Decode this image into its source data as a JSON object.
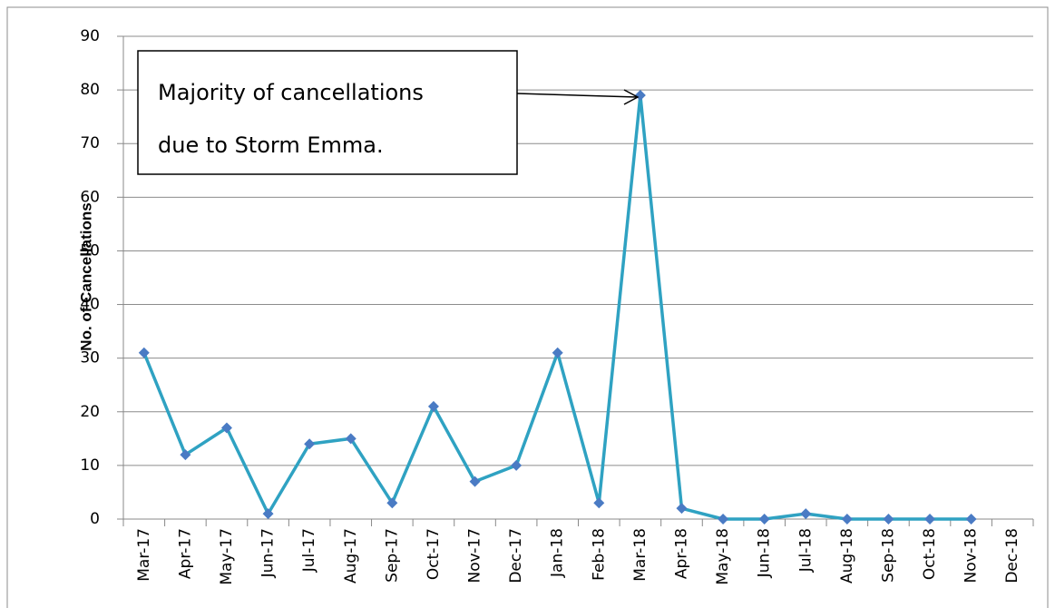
{
  "chart_data": {
    "type": "line",
    "y_label": "No. of Cancellations",
    "annotation": [
      "Majority of cancellations",
      "due to Storm Emma."
    ],
    "categories": [
      "Mar-17",
      "Apr-17",
      "May-17",
      "Jun-17",
      "Jul-17",
      "Aug-17",
      "Sep-17",
      "Oct-17",
      "Nov-17",
      "Dec-17",
      "Jan-18",
      "Feb-18",
      "Mar-18",
      "Apr-18",
      "May-18",
      "Jun-18",
      "Jul-18",
      "Aug-18",
      "Sep-18",
      "Oct-18",
      "Nov-18",
      "Dec-18"
    ],
    "series": [
      {
        "name": "Cancellations",
        "color": "#2fa2c2",
        "marker_color": "#4a7bc4",
        "values": [
          31,
          12,
          17,
          1,
          14,
          15,
          3,
          21,
          7,
          10,
          31,
          3,
          79,
          2,
          0,
          0,
          1,
          0,
          0,
          0,
          0,
          null
        ]
      }
    ],
    "ylim": [
      0,
      90
    ],
    "yticks": [
      0,
      10,
      20,
      30,
      40,
      50,
      60,
      70,
      80,
      90
    ],
    "grid": true
  }
}
